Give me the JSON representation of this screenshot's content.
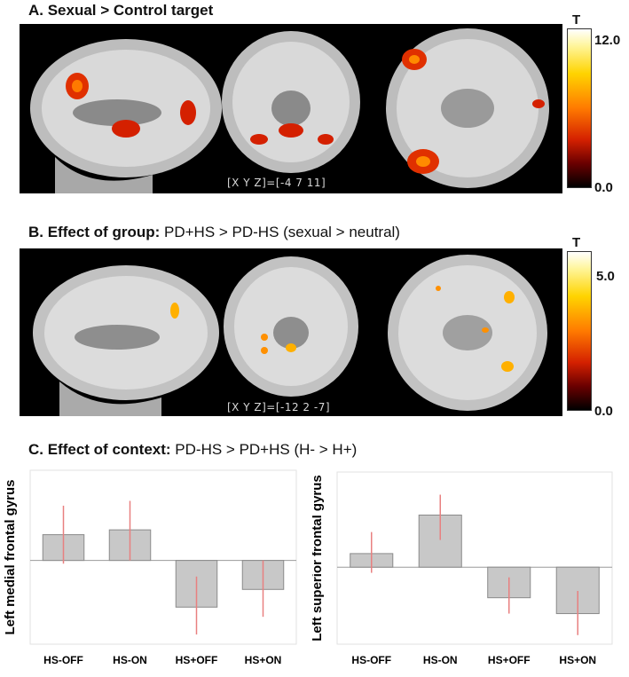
{
  "panelA": {
    "title": "A. Sexual > Control target",
    "coords": "[X Y Z]=[-4 7 11]",
    "colorbar": {
      "label": "T",
      "max": "12.0",
      "min": "0.0"
    }
  },
  "panelB": {
    "title_bold": "B. Effect of group:",
    "title_rest": "PD+HS > PD-HS (sexual > neutral)",
    "coords": "[X Y Z]=[-12 2 -7]",
    "colorbar": {
      "label": "T",
      "max": "5.0",
      "min": "0.0"
    }
  },
  "panelC": {
    "title_bold": "C. Effect of context:",
    "title_rest": "PD-HS > PD+HS (H- > H+)"
  },
  "chart_data": [
    {
      "type": "bar",
      "ylabel": "Left medial frontal gyrus",
      "categories": [
        "HS-OFF",
        "HS-ON",
        "HS+OFF",
        "HS+ON"
      ],
      "values": [
        0.8,
        0.95,
        -1.45,
        -0.9
      ],
      "error_low": [
        -0.1,
        0.0,
        -2.3,
        -1.75
      ],
      "error_high": [
        1.7,
        1.85,
        -0.5,
        0.0
      ],
      "ylim": [
        -2.6,
        2.8
      ],
      "colors": {
        "bar": "#c8c8c8",
        "bar_edge": "#8a8a8a",
        "error": "#e88080"
      }
    },
    {
      "type": "bar",
      "ylabel": "Left superior frontal gyrus",
      "categories": [
        "HS-OFF",
        "HS-ON",
        "HS+OFF",
        "HS+ON"
      ],
      "values": [
        0.6,
        2.3,
        -1.35,
        -2.05
      ],
      "error_low": [
        -0.25,
        1.2,
        -2.05,
        -3.0
      ],
      "error_high": [
        1.55,
        3.2,
        -0.45,
        -1.05
      ],
      "ylim": [
        -3.4,
        4.2
      ],
      "colors": {
        "bar": "#c8c8c8",
        "bar_edge": "#8a8a8a",
        "error": "#e88080"
      }
    }
  ]
}
